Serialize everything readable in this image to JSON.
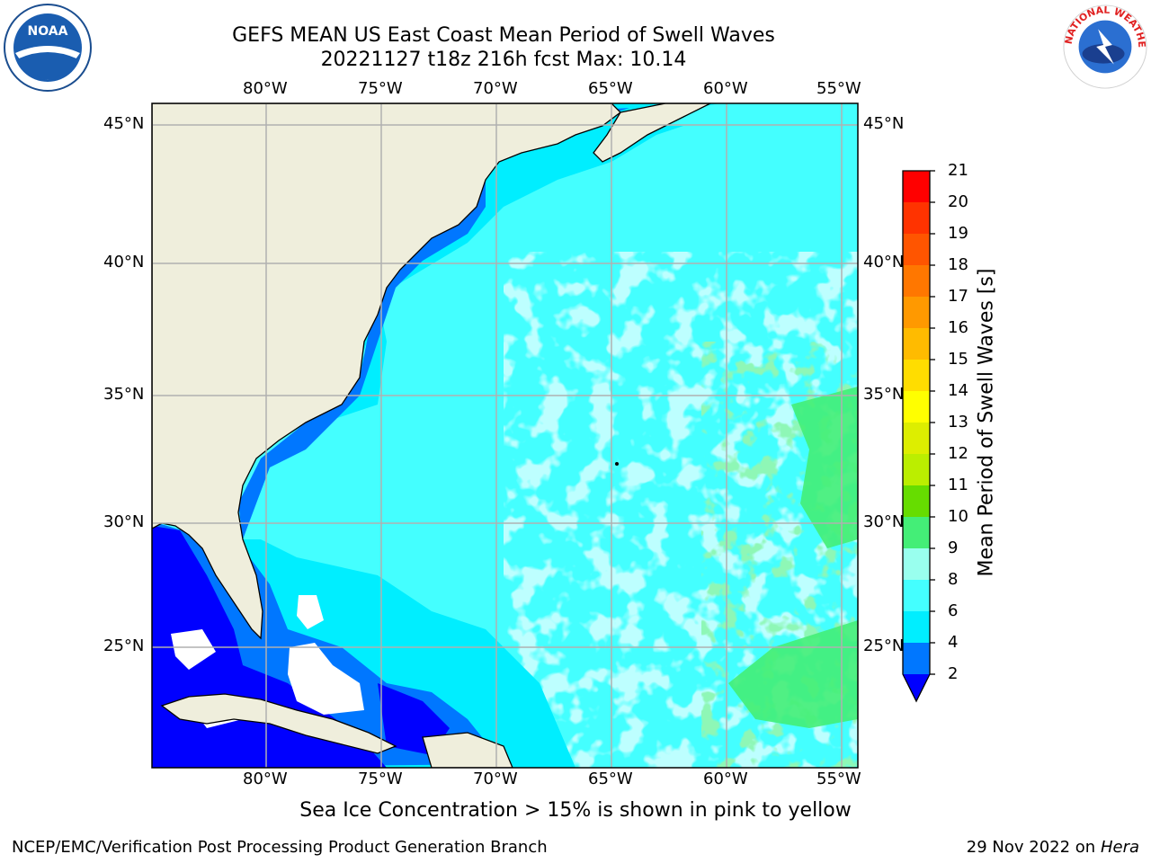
{
  "header": {
    "title_line1": "GEFS MEAN US East Coast Mean Period of Swell Waves",
    "title_line2": "20221127 t18z 216h fcst   Max: 10.14"
  },
  "logos": {
    "left": {
      "name": "noaa-logo",
      "text": "NOAA"
    },
    "right": {
      "name": "nws-logo",
      "text": "NATIONAL WEATHER SERVICE"
    }
  },
  "map": {
    "lon_labels": [
      "80°W",
      "75°W",
      "70°W",
      "65°W",
      "60°W",
      "55°W"
    ],
    "lat_labels": [
      "45°N",
      "40°N",
      "35°N",
      "30°N",
      "25°N"
    ]
  },
  "colorbar": {
    "label": "Mean Period of Swell Waves [s]",
    "ticks": [
      "21",
      "20",
      "19",
      "18",
      "17",
      "16",
      "15",
      "14",
      "13",
      "12",
      "11",
      "10",
      "9",
      "8",
      "6",
      "4",
      "2"
    ],
    "colors": [
      "#ff0000",
      "#ff3300",
      "#ff5500",
      "#ff7700",
      "#ff9900",
      "#ffbb00",
      "#ffdd00",
      "#ffff00",
      "#ddee00",
      "#bbee00",
      "#66dd00",
      "#00dd00",
      "#44ee77",
      "#99ffee",
      "#44ffff",
      "#00eeff",
      "#0077ff",
      "#0000ff"
    ]
  },
  "subnote": "Sea Ice Concentration > 15% is shown in pink to yellow",
  "footer": {
    "left": "NCEP/EMC/Verification Post Processing Product Generation Branch",
    "right_date": "29 Nov 2022 on",
    "right_host": "Hera"
  }
}
